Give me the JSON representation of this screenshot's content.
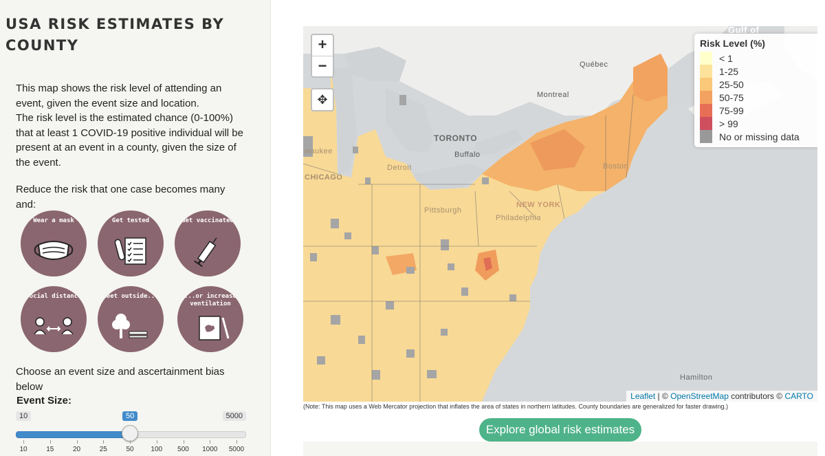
{
  "sidebar": {
    "title": "USA RISK ESTIMATES BY COUNTY",
    "description_1": "This map shows the risk level of attending an event, given the event size and location.",
    "description_2": "The risk level is the estimated chance (0-100%) that at least 1 COVID-19 positive individual will be present at an event in a county, given the size of the event.",
    "reduce_text": "Reduce the risk that one case becomes many and:",
    "icons": [
      {
        "caption": "Wear a mask",
        "icon": "mask-icon"
      },
      {
        "caption": "Get tested",
        "icon": "test-checklist-icon"
      },
      {
        "caption": "Get vaccinated",
        "icon": "syringe-icon"
      },
      {
        "caption": "Social distance",
        "icon": "social-distance-icon"
      },
      {
        "caption": "Meet outside...",
        "icon": "outdoor-tree-icon"
      },
      {
        "caption": "...or increase ventilation",
        "icon": "window-ventilation-icon"
      }
    ],
    "choose_text": "Choose an event size and ascertainment bias below",
    "event_size_label": "Event Size:",
    "slider": {
      "min_label": "10",
      "max_label": "5000",
      "value_label": "50",
      "value_fraction": 0.5,
      "tick_labels": [
        "10",
        "15",
        "20",
        "25",
        "50",
        "100",
        "500",
        "1000",
        "5000"
      ]
    }
  },
  "map": {
    "zoom_in": "+",
    "zoom_out": "−",
    "locate_icon": "crosshair-icon",
    "legend": {
      "title": "Risk Level (%)",
      "items": [
        {
          "label": "< 1",
          "color": "#ffffcc"
        },
        {
          "label": "1-25",
          "color": "#fce29b"
        },
        {
          "label": "25-50",
          "color": "#f9c878"
        },
        {
          "label": "50-75",
          "color": "#f4a261"
        },
        {
          "label": "75-99",
          "color": "#e66f55"
        },
        {
          "label": "> 99",
          "color": "#cf4f5f"
        },
        {
          "label": "No or missing data",
          "color": "#999999"
        }
      ]
    },
    "labels": {
      "gulf": "Gulf of",
      "quebec": "Québec",
      "montreal": "Montreal",
      "toronto": "TORONTO",
      "buffalo": "Buffalo",
      "detroit": "Detroit",
      "chicago": "CHICAGO",
      "milwaukee": "waukee",
      "pittsburgh": "Pittsburgh",
      "newyork": "NEW YORK",
      "philadelphia": "Philadelphia",
      "boston": "Boston",
      "hamilton": "Hamilton"
    },
    "attribution": {
      "leaflet": "Leaflet",
      "sep1": " | © ",
      "osm": "OpenStreetMap",
      "contrib": " contributors © ",
      "carto": "CARTO"
    }
  },
  "note": "(Note: This map uses a Web Mercator projection that inflates the area of states in northern latitudes. County boundaries are generalized for faster drawing.)",
  "explore_button": "Explore global risk estimates"
}
